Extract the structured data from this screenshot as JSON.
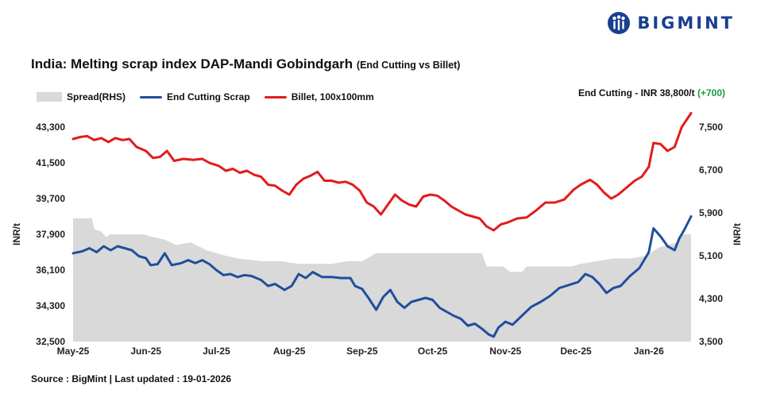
{
  "brand": {
    "name": "BIGMINT",
    "accent": "#1a3f8f"
  },
  "title": {
    "main": "India: Melting scrap index DAP-Mandi Gobindgarh",
    "sub": "(End Cutting vs Billet)"
  },
  "latest": {
    "label": "End Cutting - INR 38,800/t",
    "change": "(+700)"
  },
  "source": "Source : BigMint | Last updated : 19-01-2026",
  "chart_data": {
    "type": "line",
    "title": "India: Melting scrap index DAP-Mandi Gobindgarh",
    "subtitle": "(End Cutting vs Billet)",
    "ylabel": "INR/t",
    "y2label": "INR/t",
    "ylim": [
      32500,
      43300
    ],
    "y2lim": [
      3500,
      7500
    ],
    "yticks": [
      {
        "v": 32500,
        "label": "32,500"
      },
      {
        "v": 34300,
        "label": "34,300"
      },
      {
        "v": 36100,
        "label": "36,100"
      },
      {
        "v": 37900,
        "label": "37,900"
      },
      {
        "v": 39700,
        "label": "39,700"
      },
      {
        "v": 41500,
        "label": "41,500"
      },
      {
        "v": 43300,
        "label": "43,300"
      }
    ],
    "y2ticks": [
      {
        "v": 3500,
        "label": "3,500"
      },
      {
        "v": 4300,
        "label": "4,300"
      },
      {
        "v": 5100,
        "label": "5,100"
      },
      {
        "v": 5900,
        "label": "5,900"
      },
      {
        "v": 6700,
        "label": "6,700"
      },
      {
        "v": 7500,
        "label": "7,500"
      }
    ],
    "xlim": [
      "2025-05-01",
      "2026-01-19"
    ],
    "xticks": [
      {
        "d": "2025-05-01",
        "label": "May-25"
      },
      {
        "d": "2025-06-01",
        "label": "Jun-25"
      },
      {
        "d": "2025-07-01",
        "label": "Jul-25"
      },
      {
        "d": "2025-08-01",
        "label": "Aug-25"
      },
      {
        "d": "2025-09-01",
        "label": "Sep-25"
      },
      {
        "d": "2025-10-01",
        "label": "Oct-25"
      },
      {
        "d": "2025-11-01",
        "label": "Nov-25"
      },
      {
        "d": "2025-12-01",
        "label": "Dec-25"
      },
      {
        "d": "2026-01-01",
        "label": "Jan-26"
      }
    ],
    "legend": "top-left",
    "grid": false,
    "series": [
      {
        "name": "Spread(RHS)",
        "type": "area",
        "axis": "right",
        "color": "#d9d9d9",
        "points": [
          [
            "2025-05-01",
            5800
          ],
          [
            "2025-05-09",
            5800
          ],
          [
            "2025-05-10",
            5600
          ],
          [
            "2025-05-13",
            5550
          ],
          [
            "2025-05-15",
            5450
          ],
          [
            "2025-05-17",
            5500
          ],
          [
            "2025-05-25",
            5500
          ],
          [
            "2025-05-31",
            5500
          ],
          [
            "2025-06-04",
            5450
          ],
          [
            "2025-06-09",
            5400
          ],
          [
            "2025-06-14",
            5300
          ],
          [
            "2025-06-20",
            5350
          ],
          [
            "2025-06-27",
            5200
          ],
          [
            "2025-07-05",
            5100
          ],
          [
            "2025-07-10",
            5050
          ],
          [
            "2025-07-20",
            5000
          ],
          [
            "2025-07-28",
            5000
          ],
          [
            "2025-08-05",
            4950
          ],
          [
            "2025-08-12",
            4950
          ],
          [
            "2025-08-19",
            4950
          ],
          [
            "2025-08-26",
            5000
          ],
          [
            "2025-09-01",
            5000
          ],
          [
            "2025-09-05",
            5100
          ],
          [
            "2025-09-07",
            5150
          ],
          [
            "2025-09-20",
            5150
          ],
          [
            "2025-10-05",
            5150
          ],
          [
            "2025-10-22",
            5150
          ],
          [
            "2025-10-24",
            4900
          ],
          [
            "2025-10-31",
            4900
          ],
          [
            "2025-11-03",
            4800
          ],
          [
            "2025-11-08",
            4800
          ],
          [
            "2025-11-10",
            4900
          ],
          [
            "2025-11-20",
            4900
          ],
          [
            "2025-11-29",
            4900
          ],
          [
            "2025-12-03",
            4950
          ],
          [
            "2025-12-10",
            5000
          ],
          [
            "2025-12-17",
            5050
          ],
          [
            "2025-12-24",
            5050
          ],
          [
            "2025-12-31",
            5100
          ],
          [
            "2026-01-05",
            5250
          ],
          [
            "2026-01-13",
            5350
          ],
          [
            "2026-01-15",
            5500
          ],
          [
            "2026-01-19",
            5500
          ]
        ]
      },
      {
        "name": "End Cutting Scrap",
        "type": "line",
        "axis": "left",
        "color": "#1f4e9c",
        "points": [
          [
            "2025-05-01",
            36950
          ],
          [
            "2025-05-05",
            37050
          ],
          [
            "2025-05-08",
            37200
          ],
          [
            "2025-05-11",
            37000
          ],
          [
            "2025-05-14",
            37300
          ],
          [
            "2025-05-17",
            37100
          ],
          [
            "2025-05-20",
            37300
          ],
          [
            "2025-05-23",
            37200
          ],
          [
            "2025-05-26",
            37100
          ],
          [
            "2025-05-29",
            36800
          ],
          [
            "2025-06-01",
            36700
          ],
          [
            "2025-06-03",
            36350
          ],
          [
            "2025-06-06",
            36400
          ],
          [
            "2025-06-09",
            36950
          ],
          [
            "2025-06-12",
            36350
          ],
          [
            "2025-06-16",
            36450
          ],
          [
            "2025-06-19",
            36600
          ],
          [
            "2025-06-22",
            36450
          ],
          [
            "2025-06-25",
            36600
          ],
          [
            "2025-06-28",
            36400
          ],
          [
            "2025-07-01",
            36100
          ],
          [
            "2025-07-04",
            35850
          ],
          [
            "2025-07-07",
            35900
          ],
          [
            "2025-07-10",
            35750
          ],
          [
            "2025-07-13",
            35850
          ],
          [
            "2025-07-16",
            35800
          ],
          [
            "2025-07-20",
            35600
          ],
          [
            "2025-07-23",
            35300
          ],
          [
            "2025-07-26",
            35400
          ],
          [
            "2025-07-30",
            35100
          ],
          [
            "2025-08-02",
            35300
          ],
          [
            "2025-08-05",
            35900
          ],
          [
            "2025-08-08",
            35700
          ],
          [
            "2025-08-11",
            36000
          ],
          [
            "2025-08-15",
            35750
          ],
          [
            "2025-08-19",
            35750
          ],
          [
            "2025-08-23",
            35700
          ],
          [
            "2025-08-27",
            35700
          ],
          [
            "2025-08-29",
            35300
          ],
          [
            "2025-09-01",
            35150
          ],
          [
            "2025-09-04",
            34650
          ],
          [
            "2025-09-07",
            34100
          ],
          [
            "2025-09-10",
            34750
          ],
          [
            "2025-09-13",
            35100
          ],
          [
            "2025-09-16",
            34500
          ],
          [
            "2025-09-19",
            34200
          ],
          [
            "2025-09-22",
            34500
          ],
          [
            "2025-09-25",
            34600
          ],
          [
            "2025-09-28",
            34700
          ],
          [
            "2025-10-01",
            34600
          ],
          [
            "2025-10-04",
            34200
          ],
          [
            "2025-10-07",
            34000
          ],
          [
            "2025-10-10",
            33800
          ],
          [
            "2025-10-13",
            33650
          ],
          [
            "2025-10-16",
            33300
          ],
          [
            "2025-10-19",
            33400
          ],
          [
            "2025-10-22",
            33150
          ],
          [
            "2025-10-25",
            32850
          ],
          [
            "2025-10-27",
            32750
          ],
          [
            "2025-10-29",
            33200
          ],
          [
            "2025-11-01",
            33500
          ],
          [
            "2025-11-04",
            33350
          ],
          [
            "2025-11-08",
            33800
          ],
          [
            "2025-11-12",
            34250
          ],
          [
            "2025-11-16",
            34500
          ],
          [
            "2025-11-20",
            34800
          ],
          [
            "2025-11-24",
            35200
          ],
          [
            "2025-11-28",
            35350
          ],
          [
            "2025-12-02",
            35500
          ],
          [
            "2025-12-05",
            35900
          ],
          [
            "2025-12-08",
            35750
          ],
          [
            "2025-12-11",
            35400
          ],
          [
            "2025-12-14",
            34950
          ],
          [
            "2025-12-17",
            35200
          ],
          [
            "2025-12-20",
            35300
          ],
          [
            "2025-12-24",
            35800
          ],
          [
            "2025-12-28",
            36200
          ],
          [
            "2026-01-01",
            37000
          ],
          [
            "2026-01-03",
            38200
          ],
          [
            "2026-01-06",
            37800
          ],
          [
            "2026-01-09",
            37300
          ],
          [
            "2026-01-12",
            37100
          ],
          [
            "2026-01-14",
            37700
          ],
          [
            "2026-01-16",
            38100
          ],
          [
            "2026-01-19",
            38800
          ]
        ]
      },
      {
        "name": "Billet, 100x100mm",
        "type": "line",
        "axis": "left",
        "color": "#e31b1b",
        "points": [
          [
            "2025-05-01",
            42700
          ],
          [
            "2025-05-04",
            42800
          ],
          [
            "2025-05-07",
            42850
          ],
          [
            "2025-05-10",
            42650
          ],
          [
            "2025-05-13",
            42750
          ],
          [
            "2025-05-16",
            42550
          ],
          [
            "2025-05-19",
            42750
          ],
          [
            "2025-05-22",
            42650
          ],
          [
            "2025-05-25",
            42700
          ],
          [
            "2025-05-28",
            42300
          ],
          [
            "2025-06-01",
            42100
          ],
          [
            "2025-06-04",
            41750
          ],
          [
            "2025-06-07",
            41800
          ],
          [
            "2025-06-10",
            42100
          ],
          [
            "2025-06-13",
            41600
          ],
          [
            "2025-06-17",
            41700
          ],
          [
            "2025-06-21",
            41650
          ],
          [
            "2025-06-25",
            41700
          ],
          [
            "2025-06-28",
            41500
          ],
          [
            "2025-07-02",
            41350
          ],
          [
            "2025-07-05",
            41100
          ],
          [
            "2025-07-08",
            41200
          ],
          [
            "2025-07-11",
            41000
          ],
          [
            "2025-07-14",
            41100
          ],
          [
            "2025-07-17",
            40900
          ],
          [
            "2025-07-20",
            40800
          ],
          [
            "2025-07-23",
            40400
          ],
          [
            "2025-07-26",
            40350
          ],
          [
            "2025-07-29",
            40100
          ],
          [
            "2025-08-01",
            39900
          ],
          [
            "2025-08-04",
            40400
          ],
          [
            "2025-08-07",
            40700
          ],
          [
            "2025-08-10",
            40850
          ],
          [
            "2025-08-13",
            41050
          ],
          [
            "2025-08-16",
            40600
          ],
          [
            "2025-08-19",
            40600
          ],
          [
            "2025-08-22",
            40500
          ],
          [
            "2025-08-25",
            40550
          ],
          [
            "2025-08-28",
            40400
          ],
          [
            "2025-08-31",
            40100
          ],
          [
            "2025-09-03",
            39500
          ],
          [
            "2025-09-06",
            39300
          ],
          [
            "2025-09-09",
            38900
          ],
          [
            "2025-09-12",
            39400
          ],
          [
            "2025-09-15",
            39900
          ],
          [
            "2025-09-18",
            39600
          ],
          [
            "2025-09-21",
            39400
          ],
          [
            "2025-09-24",
            39300
          ],
          [
            "2025-09-27",
            39800
          ],
          [
            "2025-09-30",
            39900
          ],
          [
            "2025-10-03",
            39850
          ],
          [
            "2025-10-06",
            39600
          ],
          [
            "2025-10-09",
            39300
          ],
          [
            "2025-10-12",
            39100
          ],
          [
            "2025-10-15",
            38900
          ],
          [
            "2025-10-18",
            38800
          ],
          [
            "2025-10-21",
            38700
          ],
          [
            "2025-10-24",
            38300
          ],
          [
            "2025-10-27",
            38100
          ],
          [
            "2025-10-30",
            38400
          ],
          [
            "2025-11-02",
            38500
          ],
          [
            "2025-11-06",
            38700
          ],
          [
            "2025-11-10",
            38750
          ],
          [
            "2025-11-14",
            39100
          ],
          [
            "2025-11-18",
            39500
          ],
          [
            "2025-11-22",
            39500
          ],
          [
            "2025-11-26",
            39650
          ],
          [
            "2025-11-30",
            40150
          ],
          [
            "2025-12-03",
            40400
          ],
          [
            "2025-12-07",
            40650
          ],
          [
            "2025-12-10",
            40400
          ],
          [
            "2025-12-13",
            40000
          ],
          [
            "2025-12-16",
            39700
          ],
          [
            "2025-12-19",
            39900
          ],
          [
            "2025-12-22",
            40200
          ],
          [
            "2025-12-26",
            40600
          ],
          [
            "2025-12-29",
            40800
          ],
          [
            "2026-01-01",
            41300
          ],
          [
            "2026-01-03",
            42500
          ],
          [
            "2026-01-06",
            42450
          ],
          [
            "2026-01-09",
            42100
          ],
          [
            "2026-01-12",
            42300
          ],
          [
            "2026-01-15",
            43300
          ],
          [
            "2026-01-19",
            44000
          ]
        ]
      }
    ]
  }
}
